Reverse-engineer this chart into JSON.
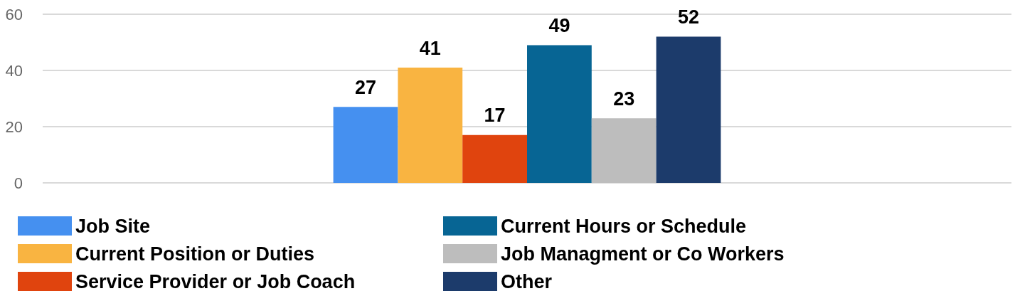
{
  "chart_data": {
    "type": "bar",
    "categories": [
      null
    ],
    "series": [
      {
        "name": "Job Site",
        "color": "#4590f0",
        "values": [
          27
        ]
      },
      {
        "name": "Current Position or Duties",
        "color": "#f9b441",
        "values": [
          41
        ]
      },
      {
        "name": "Service Provider or Job Coach",
        "color": "#e0440e",
        "values": [
          17
        ]
      },
      {
        "name": "Current Hours or Schedule",
        "color": "#076594",
        "values": [
          49
        ]
      },
      {
        "name": "Job Managment or Co Workers",
        "color": "#bdbdbd",
        "values": [
          23
        ]
      },
      {
        "name": "Other",
        "color": "#1c3b6b",
        "values": [
          52
        ]
      }
    ],
    "ylim": [
      0,
      60
    ],
    "yticks": [
      0,
      20,
      40,
      60
    ],
    "grid": "y",
    "legend": "bottom",
    "data_labels": true
  }
}
